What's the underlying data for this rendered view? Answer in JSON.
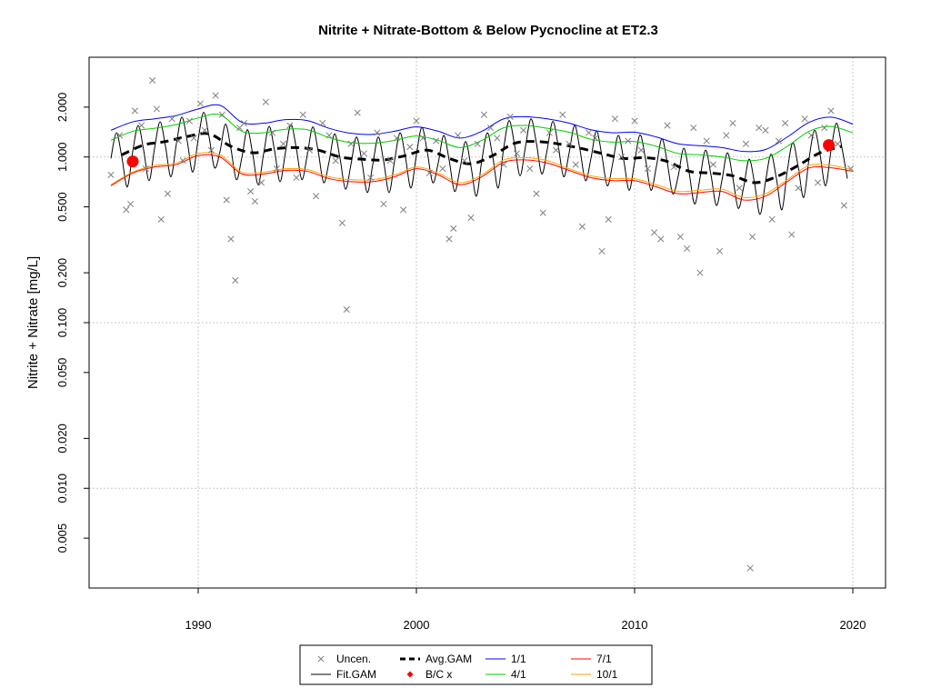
{
  "chart_data": {
    "type": "line",
    "title": "Nitrite + Nitrate-Bottom & Below Pycnocline at ET2.3",
    "xlabel": "",
    "ylabel": "Nitrite + Nitrate [mg/L]",
    "y_scale": "log",
    "xlim": [
      1985,
      2021.5
    ],
    "ylim": [
      0.0025,
      4.0
    ],
    "x_ticks": [
      1990,
      2000,
      2010,
      2020
    ],
    "y_ticks": [
      0.005,
      0.01,
      0.02,
      0.05,
      0.1,
      0.2,
      0.5,
      1.0,
      2.0
    ],
    "y_tick_labels": [
      "0.005",
      "0.010",
      "0.020",
      "0.050",
      "0.100",
      "0.200",
      "0.500",
      "1.000",
      "2.000"
    ],
    "grid": true,
    "colors": {
      "uncen": "#7f7f7f",
      "fit_gam": "#000000",
      "avg_gam": "#000000",
      "bc": "#ff0000",
      "s1_1": "#0000ff",
      "s4_1": "#00cc00",
      "s7_1": "#ff0000",
      "s10_1": "#ffa500"
    },
    "legend": {
      "placement": "bottom-center",
      "entries": [
        {
          "key": "uncen",
          "label": "Uncen."
        },
        {
          "key": "avg_gam",
          "label": "Avg.GAM"
        },
        {
          "key": "s1_1",
          "label": "1/1"
        },
        {
          "key": "s7_1",
          "label": "7/1"
        },
        {
          "key": "fit_gam",
          "label": "Fit.GAM"
        },
        {
          "key": "bc",
          "label": "B/C x"
        },
        {
          "key": "s4_1",
          "label": "4/1"
        },
        {
          "key": "s10_1",
          "label": "10/1"
        }
      ]
    },
    "avg_gam_series": {
      "x": [
        1986.5,
        1987.5,
        1988.5,
        1989.5,
        1990.5,
        1991.5,
        1992.5,
        1993.5,
        1994.5,
        1995.5,
        1996.5,
        1997.5,
        1998.5,
        1999.5,
        2000.5,
        2001.5,
        2002.5,
        2003.5,
        2004.5,
        2005.5,
        2006.5,
        2007.5,
        2008.5,
        2009.5,
        2010.5,
        2011.5,
        2012.5,
        2013.5,
        2014.5,
        2015.5,
        2016.5,
        2017.5,
        2018.5,
        2019.5
      ],
      "y": [
        1.03,
        1.18,
        1.24,
        1.33,
        1.38,
        1.16,
        1.06,
        1.12,
        1.14,
        1.1,
        1.0,
        0.97,
        0.96,
        1.02,
        1.1,
        0.98,
        0.91,
        1.02,
        1.21,
        1.24,
        1.2,
        1.13,
        1.05,
        0.98,
        0.99,
        0.94,
        0.82,
        0.8,
        0.77,
        0.7,
        0.76,
        0.89,
        1.06,
        1.16
      ]
    },
    "flow_1_1_series": {
      "x": [
        1986.0,
        1987.0,
        1988.0,
        1989.0,
        1990.0,
        1991.0,
        1992.0,
        1993.0,
        1994.0,
        1995.0,
        1996.0,
        1997.0,
        1998.0,
        1999.0,
        2000.0,
        2001.0,
        2002.0,
        2003.0,
        2004.0,
        2005.0,
        2006.0,
        2007.0,
        2008.0,
        2009.0,
        2010.0,
        2011.0,
        2012.0,
        2013.0,
        2014.0,
        2015.0,
        2016.0,
        2017.0,
        2018.0,
        2019.0,
        2020.0
      ],
      "y": [
        1.45,
        1.63,
        1.7,
        1.78,
        1.95,
        2.05,
        1.62,
        1.6,
        1.68,
        1.66,
        1.49,
        1.39,
        1.37,
        1.43,
        1.52,
        1.43,
        1.3,
        1.43,
        1.7,
        1.75,
        1.7,
        1.6,
        1.46,
        1.4,
        1.41,
        1.32,
        1.2,
        1.17,
        1.14,
        1.08,
        1.11,
        1.32,
        1.62,
        1.74,
        1.58
      ]
    },
    "flow_4_1_series": {
      "x": [
        1986.0,
        1987.0,
        1988.0,
        1989.0,
        1990.0,
        1991.0,
        1992.0,
        1993.0,
        1994.0,
        1995.0,
        1996.0,
        1997.0,
        1998.0,
        1999.0,
        2000.0,
        2001.0,
        2002.0,
        2003.0,
        2004.0,
        2005.0,
        2006.0,
        2007.0,
        2008.0,
        2009.0,
        2010.0,
        2011.0,
        2012.0,
        2013.0,
        2014.0,
        2015.0,
        2016.0,
        2017.0,
        2018.0,
        2019.0,
        2020.0
      ],
      "y": [
        1.26,
        1.43,
        1.49,
        1.57,
        1.72,
        1.8,
        1.43,
        1.4,
        1.47,
        1.46,
        1.31,
        1.22,
        1.21,
        1.26,
        1.34,
        1.26,
        1.14,
        1.26,
        1.5,
        1.55,
        1.49,
        1.41,
        1.28,
        1.23,
        1.24,
        1.16,
        1.05,
        1.03,
        1.0,
        0.95,
        0.98,
        1.16,
        1.43,
        1.53,
        1.4
      ]
    },
    "flow_7_1_series": {
      "x": [
        1986.0,
        1987.0,
        1988.0,
        1989.0,
        1990.0,
        1991.0,
        1992.0,
        1993.0,
        1994.0,
        1995.0,
        1996.0,
        1997.0,
        1998.0,
        1999.0,
        2000.0,
        2001.0,
        2002.0,
        2003.0,
        2004.0,
        2005.0,
        2006.0,
        2007.0,
        2008.0,
        2009.0,
        2010.0,
        2011.0,
        2012.0,
        2013.0,
        2014.0,
        2015.0,
        2016.0,
        2017.0,
        2018.0,
        2019.0,
        2020.0
      ],
      "y": [
        0.67,
        0.8,
        0.87,
        0.9,
        1.02,
        1.0,
        0.79,
        0.79,
        0.83,
        0.82,
        0.74,
        0.71,
        0.71,
        0.76,
        0.85,
        0.78,
        0.68,
        0.76,
        0.93,
        0.96,
        0.92,
        0.83,
        0.75,
        0.72,
        0.72,
        0.66,
        0.6,
        0.61,
        0.62,
        0.55,
        0.58,
        0.71,
        0.86,
        0.86,
        0.82
      ]
    },
    "flow_10_1_series": {
      "x": [
        1986.0,
        1987.0,
        1988.0,
        1989.0,
        1990.0,
        1991.0,
        1992.0,
        1993.0,
        1994.0,
        1995.0,
        1996.0,
        1997.0,
        1998.0,
        1999.0,
        2000.0,
        2001.0,
        2002.0,
        2003.0,
        2004.0,
        2005.0,
        2006.0,
        2007.0,
        2008.0,
        2009.0,
        2010.0,
        2011.0,
        2012.0,
        2013.0,
        2014.0,
        2015.0,
        2016.0,
        2017.0,
        2018.0,
        2019.0,
        2020.0
      ],
      "y": [
        0.68,
        0.81,
        0.89,
        0.92,
        1.05,
        1.03,
        0.81,
        0.81,
        0.85,
        0.84,
        0.76,
        0.73,
        0.73,
        0.78,
        0.87,
        0.8,
        0.7,
        0.78,
        0.96,
        0.99,
        0.95,
        0.85,
        0.77,
        0.74,
        0.74,
        0.68,
        0.62,
        0.63,
        0.64,
        0.57,
        0.6,
        0.73,
        0.89,
        0.89,
        0.84
      ]
    },
    "fit_gam_series": {
      "x": [
        1986.0,
        1986.25,
        1986.5,
        1986.75,
        1987.0,
        1987.25,
        1987.5,
        1987.75,
        1988.0,
        1988.25,
        1988.5,
        1988.75,
        1989.0,
        1989.25,
        1989.5,
        1989.75,
        1990.0,
        1990.25,
        1990.5,
        1990.75,
        1991.0,
        1991.25,
        1991.5,
        1991.75,
        1992.0,
        1992.25,
        1992.5,
        1992.75,
        1993.0,
        1993.25,
        1993.5,
        1993.75,
        1994.0,
        1994.25,
        1994.5,
        1994.75,
        1995.0,
        1995.25,
        1995.5,
        1995.75,
        1996.0,
        1996.25,
        1996.5,
        1996.75,
        1997.0,
        1997.25,
        1997.5,
        1997.75,
        1998.0,
        1998.25,
        1998.5,
        1998.75,
        1999.0,
        1999.25,
        1999.5,
        1999.75,
        2000.0,
        2000.25,
        2000.5,
        2000.75,
        2001.0,
        2001.25,
        2001.5,
        2001.75,
        2002.0,
        2002.25,
        2002.5,
        2002.75,
        2003.0,
        2003.25,
        2003.5,
        2003.75,
        2004.0,
        2004.25,
        2004.5,
        2004.75,
        2005.0,
        2005.25,
        2005.5,
        2005.75,
        2006.0,
        2006.25,
        2006.5,
        2006.75,
        2007.0,
        2007.25,
        2007.5,
        2007.75,
        2008.0,
        2008.25,
        2008.5,
        2008.75,
        2009.0,
        2009.25,
        2009.5,
        2009.75,
        2010.0,
        2010.25,
        2010.5,
        2010.75,
        2011.0,
        2011.25,
        2011.5,
        2011.75,
        2012.0,
        2012.25,
        2012.5,
        2012.75,
        2013.0,
        2013.25,
        2013.5,
        2013.75,
        2014.0,
        2014.25,
        2014.5,
        2014.75,
        2015.0,
        2015.25,
        2015.5,
        2015.75,
        2016.0,
        2016.25,
        2016.5,
        2016.75,
        2017.0,
        2017.25,
        2017.5,
        2017.75,
        2018.0,
        2018.25,
        2018.5,
        2018.75,
        2019.0,
        2019.25,
        2019.5,
        2019.75
      ],
      "y": [
        0.98,
        1.4,
        1.0,
        0.66,
        1.08,
        1.55,
        1.1,
        0.72,
        1.13,
        1.63,
        1.16,
        0.76,
        1.2,
        1.74,
        1.24,
        0.81,
        1.28,
        1.86,
        1.32,
        0.86,
        1.08,
        1.58,
        1.12,
        0.73,
        0.99,
        1.46,
        1.04,
        0.68,
        1.05,
        1.53,
        1.09,
        0.71,
        1.07,
        1.57,
        1.12,
        0.73,
        1.03,
        1.52,
        1.08,
        0.7,
        0.94,
        1.38,
        0.98,
        0.64,
        0.9,
        1.32,
        0.94,
        0.61,
        0.9,
        1.32,
        0.94,
        0.61,
        0.95,
        1.4,
        0.99,
        0.65,
        1.03,
        1.51,
        1.07,
        0.7,
        0.92,
        1.35,
        0.96,
        0.62,
        0.85,
        1.24,
        0.88,
        0.58,
        0.96,
        1.4,
        1.0,
        0.65,
        1.13,
        1.66,
        1.18,
        0.77,
        1.16,
        1.7,
        1.21,
        0.79,
        1.12,
        1.64,
        1.17,
        0.76,
        1.06,
        1.55,
        1.1,
        0.72,
        0.98,
        1.44,
        1.02,
        0.67,
        0.92,
        1.35,
        0.96,
        0.63,
        0.93,
        1.36,
        0.97,
        0.63,
        0.88,
        1.29,
        0.92,
        0.6,
        0.77,
        1.13,
        0.8,
        0.52,
        0.75,
        1.1,
        0.78,
        0.51,
        0.72,
        1.06,
        0.75,
        0.49,
        0.66,
        0.97,
        0.69,
        0.45,
        0.71,
        1.04,
        0.74,
        0.48,
        0.83,
        1.22,
        0.87,
        0.57,
        0.99,
        1.45,
        1.03,
        0.67,
        1.09,
        1.6,
        1.14,
        0.74
      ]
    },
    "uncen_points": {
      "x": [
        1986.0,
        1986.4,
        1986.7,
        1986.9,
        1987.1,
        1987.4,
        1987.6,
        1987.9,
        1988.1,
        1988.3,
        1988.6,
        1988.8,
        1989.1,
        1989.3,
        1989.6,
        1989.8,
        1990.1,
        1990.3,
        1990.6,
        1990.8,
        1991.1,
        1991.3,
        1991.5,
        1991.7,
        1991.9,
        1992.1,
        1992.4,
        1992.6,
        1992.9,
        1993.1,
        1993.4,
        1993.6,
        1993.9,
        1994.2,
        1994.5,
        1994.8,
        1995.1,
        1995.4,
        1995.7,
        1996.0,
        1996.3,
        1996.6,
        1996.8,
        1997.0,
        1997.3,
        1997.6,
        1997.9,
        1998.2,
        1998.5,
        1998.8,
        1999.1,
        1999.4,
        1999.7,
        2000.0,
        2000.3,
        2000.6,
        2000.9,
        2001.2,
        2001.5,
        2001.7,
        2001.9,
        2002.2,
        2002.5,
        2002.8,
        2003.1,
        2003.4,
        2003.7,
        2004.0,
        2004.3,
        2004.6,
        2004.9,
        2005.2,
        2005.5,
        2005.8,
        2006.1,
        2006.4,
        2006.7,
        2007.0,
        2007.3,
        2007.6,
        2007.9,
        2008.2,
        2008.5,
        2008.8,
        2009.1,
        2009.4,
        2009.7,
        2010.0,
        2010.3,
        2010.6,
        2010.9,
        2011.2,
        2011.5,
        2011.8,
        2012.1,
        2012.4,
        2012.7,
        2013.0,
        2013.3,
        2013.6,
        2013.9,
        2014.2,
        2014.5,
        2014.8,
        2015.1,
        2015.4,
        2015.7,
        2016.0,
        2016.3,
        2016.6,
        2016.9,
        2017.2,
        2017.5,
        2017.8,
        2018.1,
        2018.4,
        2018.7,
        2019.0,
        2019.3,
        2019.6,
        2019.9
      ],
      "y": [
        0.78,
        1.35,
        0.48,
        0.52,
        1.9,
        1.55,
        0.85,
        2.9,
        1.95,
        0.42,
        0.6,
        1.7,
        1.25,
        0.95,
        1.65,
        1.3,
        2.1,
        1.45,
        1.1,
        2.35,
        1.8,
        0.55,
        0.32,
        0.18,
        1.5,
        1.6,
        0.62,
        0.54,
        0.7,
        2.15,
        1.4,
        0.85,
        1.2,
        1.55,
        0.75,
        1.8,
        1.1,
        0.58,
        1.6,
        1.35,
        0.95,
        0.4,
        0.12,
        1.2,
        1.85,
        1.05,
        0.75,
        1.4,
        0.52,
        0.95,
        1.3,
        0.48,
        1.15,
        1.65,
        1.3,
        0.8,
        1.25,
        0.85,
        0.32,
        0.37,
        1.35,
        0.95,
        0.43,
        1.2,
        1.8,
        1.5,
        1.3,
        0.9,
        1.75,
        1.05,
        1.45,
        0.85,
        0.6,
        0.46,
        1.4,
        1.1,
        1.8,
        1.2,
        0.9,
        0.38,
        1.4,
        1.3,
        0.27,
        0.42,
        1.7,
        1.0,
        1.25,
        1.65,
        1.1,
        0.85,
        0.35,
        0.32,
        1.55,
        0.87,
        0.33,
        0.28,
        1.5,
        0.2,
        1.25,
        0.9,
        0.27,
        1.35,
        1.6,
        0.65,
        1.2,
        0.33,
        1.5,
        1.45,
        0.42,
        1.25,
        1.6,
        0.34,
        0.65,
        1.7,
        1.35,
        0.7,
        1.5,
        1.9,
        1.2,
        0.51,
        0.85
      ]
    },
    "uncen_extra_points": {
      "x": [
        2015.3
      ],
      "y": [
        0.0033
      ]
    },
    "bc_points": {
      "x": [
        1987.0,
        2018.9
      ],
      "y": [
        0.94,
        1.18
      ]
    }
  }
}
